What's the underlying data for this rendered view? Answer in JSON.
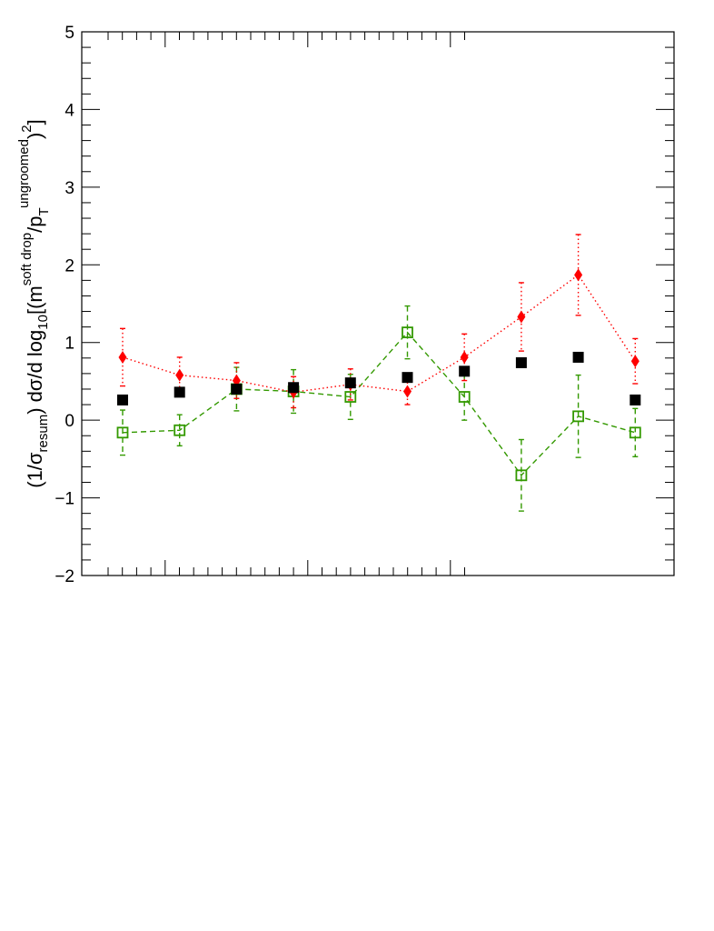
{
  "chart_data": {
    "type": "scatter",
    "title": "",
    "xlabel": "",
    "ylabel": {
      "prefix": "(1/σ",
      "resum_sub": "resum",
      "middle": ") dσ/d log",
      "log_sub": "10",
      "bracket": "[(m",
      "sd_sup": "soft drop",
      "slash": "/p",
      "t_sub": "T",
      "ug_sup": "ungroomed",
      "close_paren": ")",
      "two_sup": "2",
      "close_bracket": "]"
    },
    "ylim": [
      -2,
      5
    ],
    "yticks": [
      "−2",
      "−1",
      "0",
      "1",
      "2",
      "3",
      "4",
      "5"
    ],
    "grid": false,
    "x": [
      1,
      2,
      3,
      4,
      5,
      6,
      7,
      8,
      9,
      10
    ],
    "series": [
      {
        "name": "black-squares",
        "marker": "filled-square",
        "color": "#000000",
        "line": "none",
        "values": [
          0.26,
          0.36,
          0.4,
          0.42,
          0.48,
          0.55,
          0.63,
          0.74,
          0.81,
          0.26
        ],
        "errors": [
          0,
          0,
          0,
          0,
          0,
          0,
          0,
          0,
          0,
          0
        ]
      },
      {
        "name": "red-diamonds",
        "marker": "filled-diamond",
        "color": "#ff0000",
        "line": "dotted",
        "values": [
          0.81,
          0.58,
          0.51,
          0.36,
          0.46,
          0.37,
          0.81,
          1.33,
          1.87,
          0.76
        ],
        "errors": [
          0.37,
          0.23,
          0.23,
          0.2,
          0.2,
          0.17,
          0.3,
          0.44,
          0.52,
          0.29
        ]
      },
      {
        "name": "green-open-squares",
        "marker": "open-square",
        "color": "#339900",
        "line": "dashed",
        "values": [
          -0.16,
          -0.13,
          0.4,
          0.37,
          0.3,
          1.13,
          0.3,
          -0.71,
          0.05,
          -0.16
        ],
        "errors": [
          0.29,
          0.2,
          0.28,
          0.28,
          0.29,
          0.34,
          0.3,
          0.46,
          0.53,
          0.31
        ]
      }
    ]
  }
}
